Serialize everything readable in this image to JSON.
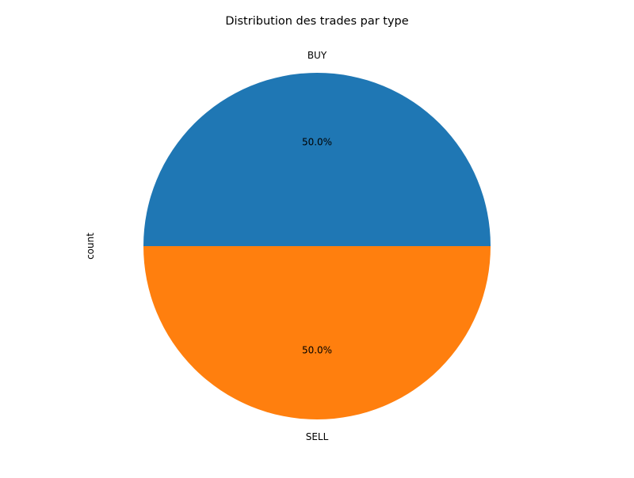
{
  "chart_data": {
    "type": "pie",
    "title": "Distribution des trades par type",
    "ylabel": "count",
    "categories": [
      "BUY",
      "SELL"
    ],
    "values": [
      50,
      50
    ],
    "percent_labels": [
      "50.0%",
      "50.0%"
    ],
    "colors": [
      "#1f77b4",
      "#ff7f0e"
    ],
    "start_angle_deg": 0,
    "direction": "counterclockwise",
    "legend": "none"
  }
}
